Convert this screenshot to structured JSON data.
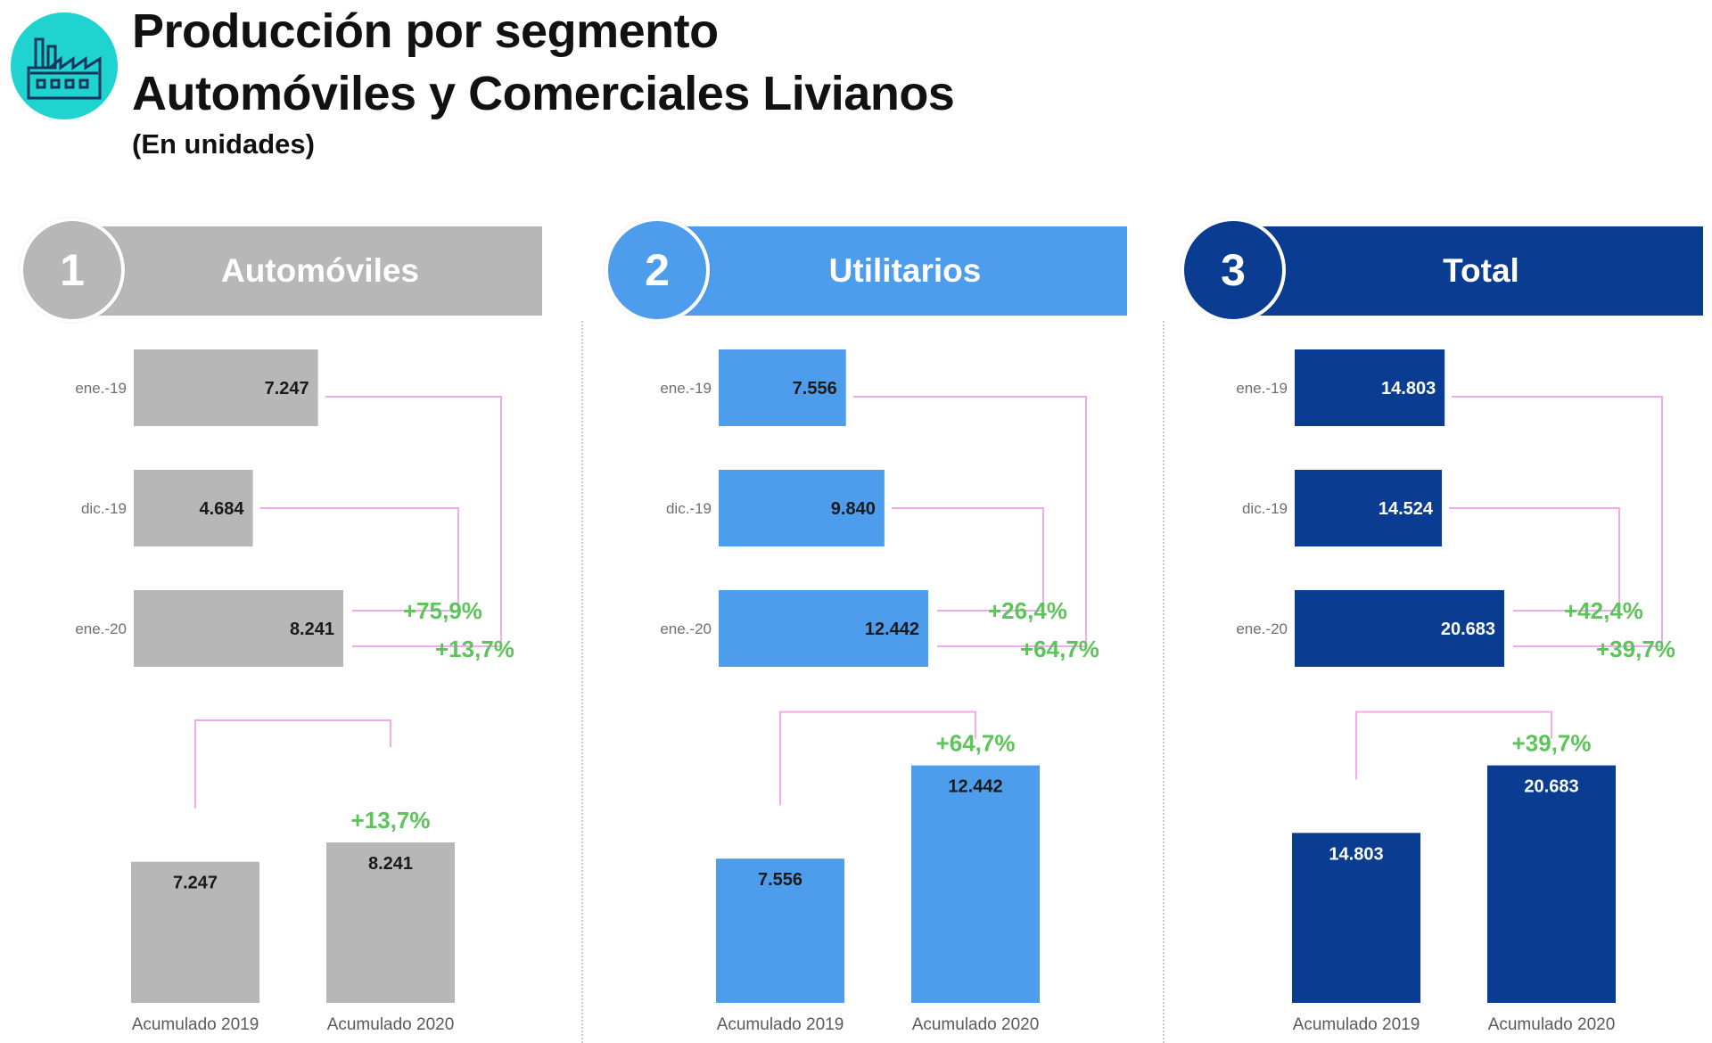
{
  "header": {
    "title_line1": "Producción por segmento",
    "title_line2": "Automóviles y Comerciales Livianos",
    "subtitle": "(En unidades)",
    "icon": "factory-icon",
    "icon_color": "#1fd3d0"
  },
  "colors": {
    "automoviles": "#b7b7b7",
    "utilitarios": "#4e9ded",
    "total": "#0a3d91",
    "connector": "#f3a8ef",
    "growth": "#5cc45a"
  },
  "chart_data": [
    {
      "type": "bar",
      "panel_number": "1",
      "panel_title": "Automóviles",
      "color": "#b7b7b7",
      "monthly": {
        "orientation": "horizontal",
        "categories": [
          "ene.-19",
          "dic.-19",
          "ene.-20"
        ],
        "values": [
          7247,
          4684,
          8241
        ],
        "value_labels": [
          "7.247",
          "4.684",
          "8.241"
        ],
        "growth_vs_prev_month": "+75,9%",
        "growth_vs_year_ago": "+13,7%"
      },
      "cumulative": {
        "orientation": "vertical",
        "categories": [
          "Acumulado 2019",
          "Acumulado 2020"
        ],
        "values": [
          7247,
          8241
        ],
        "value_labels": [
          "7.247",
          "8.241"
        ],
        "growth": "+13,7%"
      }
    },
    {
      "type": "bar",
      "panel_number": "2",
      "panel_title": "Utilitarios",
      "color": "#4e9ded",
      "monthly": {
        "orientation": "horizontal",
        "categories": [
          "ene.-19",
          "dic.-19",
          "ene.-20"
        ],
        "values": [
          7556,
          9840,
          12442
        ],
        "value_labels": [
          "7.556",
          "9.840",
          "12.442"
        ],
        "growth_vs_prev_month": "+26,4%",
        "growth_vs_year_ago": "+64,7%"
      },
      "cumulative": {
        "orientation": "vertical",
        "categories": [
          "Acumulado 2019",
          "Acumulado 2020"
        ],
        "values": [
          7556,
          12442
        ],
        "value_labels": [
          "7.556",
          "12.442"
        ],
        "growth": "+64,7%"
      }
    },
    {
      "type": "bar",
      "panel_number": "3",
      "panel_title": "Total",
      "color": "#0a3d91",
      "monthly": {
        "orientation": "horizontal",
        "categories": [
          "ene.-19",
          "dic.-19",
          "ene.-20"
        ],
        "values": [
          14803,
          14524,
          20683
        ],
        "value_labels": [
          "14.803",
          "14.524",
          "20.683"
        ],
        "growth_vs_prev_month": "+42,4%",
        "growth_vs_year_ago": "+39,7%"
      },
      "cumulative": {
        "orientation": "vertical",
        "categories": [
          "Acumulado 2019",
          "Acumulado 2020"
        ],
        "values": [
          14803,
          20683
        ],
        "value_labels": [
          "14.803",
          "20.683"
        ],
        "growth": "+39,7%"
      }
    }
  ]
}
